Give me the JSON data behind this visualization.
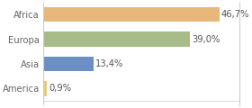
{
  "categories": [
    "America",
    "Asia",
    "Europa",
    "Africa"
  ],
  "values": [
    0.9,
    13.4,
    39.0,
    46.7
  ],
  "bar_colors": [
    "#e8c97e",
    "#6b8fc4",
    "#a8bc8a",
    "#e8b87a"
  ],
  "labels": [
    "0,9%",
    "13,4%",
    "39,0%",
    "46,7%"
  ],
  "xlim": [
    0,
    52
  ],
  "background_color": "#ffffff",
  "bar_height": 0.6,
  "label_fontsize": 7.2,
  "tick_fontsize": 7.2,
  "border_color": "#cccccc"
}
